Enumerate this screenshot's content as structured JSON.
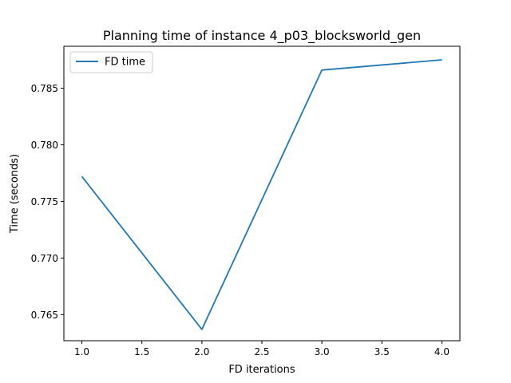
{
  "chart_data": {
    "type": "line",
    "title": "Planning time of instance 4_p03_blocksworld_gen",
    "xlabel": "FD iterations",
    "ylabel": "Time (seconds)",
    "xlim": [
      0.85,
      4.15
    ],
    "ylim": [
      0.7627,
      0.7887
    ],
    "x_ticks": [
      1.0,
      1.5,
      2.0,
      2.5,
      3.0,
      3.5,
      4.0
    ],
    "x_tick_labels": [
      "1.0",
      "1.5",
      "2.0",
      "2.5",
      "3.0",
      "3.5",
      "4.0"
    ],
    "y_ticks": [
      0.765,
      0.77,
      0.775,
      0.78,
      0.785
    ],
    "y_tick_labels": [
      "0.765",
      "0.770",
      "0.775",
      "0.780",
      "0.785"
    ],
    "grid": false,
    "legend_position": "top-left",
    "series": [
      {
        "name": "FD time",
        "color": "#1f77b4",
        "x": [
          1.0,
          2.0,
          3.0,
          4.0
        ],
        "y": [
          0.7772,
          0.7637,
          0.7866,
          0.7875
        ]
      }
    ]
  }
}
